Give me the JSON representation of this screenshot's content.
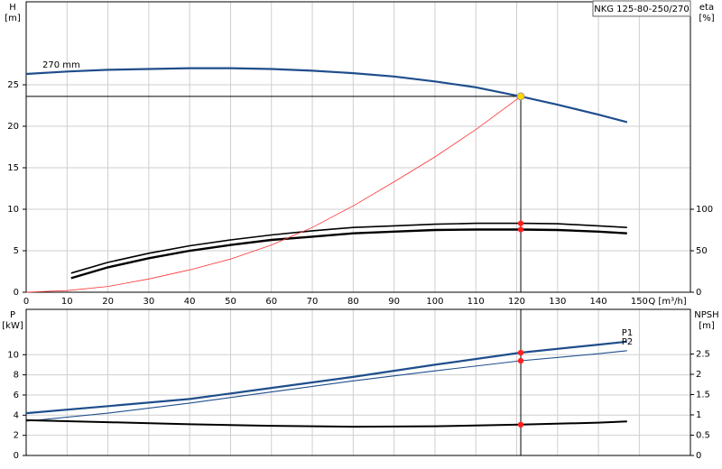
{
  "chart_data": [
    {
      "type": "line",
      "title": "NKG 125-80-250/270",
      "ylabel": [
        "H",
        "[m]"
      ],
      "y2label": [
        "eta",
        "[%]"
      ],
      "xlabel": "Q [m³/h]",
      "xlim": [
        0,
        162.5
      ],
      "xticks": [
        0,
        10,
        20,
        30,
        40,
        50,
        60,
        70,
        80,
        90,
        100,
        110,
        120,
        130,
        140,
        150
      ],
      "ylim": [
        0,
        35
      ],
      "yticks": [
        0,
        5,
        10,
        15,
        20,
        25
      ],
      "y2lim": [
        0,
        350
      ],
      "y2ticks": [
        0,
        50,
        100
      ],
      "grid": true,
      "xtick_labels": true,
      "duty_point": {
        "q": 121,
        "h": 23.6
      },
      "series": [
        {
          "name": "270 mm",
          "color": "#1f4e8c",
          "width": 2.2,
          "x": [
            0,
            10,
            20,
            30,
            40,
            50,
            60,
            70,
            80,
            90,
            100,
            110,
            121,
            130,
            140,
            147
          ],
          "values": [
            26.3,
            26.6,
            26.8,
            26.9,
            27.0,
            27.0,
            26.9,
            26.7,
            26.4,
            26.0,
            25.4,
            24.7,
            23.6,
            22.6,
            21.4,
            20.5
          ]
        },
        {
          "color": "#000000",
          "width": 1.6,
          "axis": "y2",
          "x": [
            11,
            20,
            30,
            40,
            50,
            60,
            70,
            80,
            90,
            100,
            110,
            121,
            130,
            140,
            147
          ],
          "values": [
            23,
            36,
            47,
            56,
            63,
            69,
            74,
            78,
            80,
            82,
            83,
            83,
            82.5,
            80,
            78
          ]
        },
        {
          "color": "#000000",
          "width": 2.4,
          "axis": "y2",
          "x": [
            11,
            20,
            30,
            40,
            50,
            60,
            70,
            80,
            90,
            100,
            110,
            121,
            130,
            140,
            147
          ],
          "values": [
            17,
            30,
            41,
            50,
            57,
            63,
            67,
            71,
            73,
            75,
            75.5,
            75.5,
            75,
            73,
            71
          ]
        },
        {
          "color": "#ff3333",
          "width": 0.8,
          "nodot": true,
          "x": [
            0,
            10,
            20,
            30,
            40,
            50,
            60,
            70,
            80,
            90,
            100,
            110,
            121
          ],
          "values": [
            0,
            0.2,
            0.7,
            1.6,
            2.7,
            4,
            5.7,
            7.8,
            10.4,
            13.3,
            16.3,
            19.6,
            23.6
          ]
        }
      ]
    },
    {
      "type": "line",
      "ylabel": [
        "P",
        "[kW]"
      ],
      "y2label": [
        "NPSH",
        "[m]"
      ],
      "xlim": [
        0,
        162.5
      ],
      "xticks": [
        0,
        10,
        20,
        30,
        40,
        50,
        60,
        70,
        80,
        90,
        100,
        110,
        120,
        130,
        140,
        150
      ],
      "ylim": [
        0,
        14.5
      ],
      "yticks": [
        0,
        2,
        4,
        6,
        8,
        10
      ],
      "y2lim": [
        0,
        3.6
      ],
      "y2ticks": [
        0,
        0.5,
        1,
        1.5,
        2,
        2.5
      ],
      "grid": true,
      "xtick_labels": false,
      "duty_point": {
        "q": 121
      },
      "series": [
        {
          "name": "P1",
          "color": "#1f4e8c",
          "width": 2.2,
          "x": [
            0,
            20,
            40,
            60,
            80,
            100,
            121,
            140,
            147
          ],
          "values": [
            4.2,
            4.9,
            5.6,
            6.7,
            7.8,
            9.0,
            10.2,
            11.0,
            11.3
          ]
        },
        {
          "name": "P2",
          "color": "#1f4e8c",
          "width": 1.1,
          "x": [
            0,
            20,
            40,
            60,
            80,
            100,
            121,
            140,
            147
          ],
          "values": [
            3.4,
            4.2,
            5.2,
            6.3,
            7.4,
            8.4,
            9.4,
            10.1,
            10.4
          ]
        },
        {
          "color": "#000000",
          "width": 2,
          "axis": "y2",
          "x": [
            0,
            20,
            40,
            60,
            80,
            100,
            121,
            140,
            147
          ],
          "values": [
            0.87,
            0.82,
            0.77,
            0.73,
            0.71,
            0.72,
            0.76,
            0.81,
            0.84
          ]
        }
      ]
    }
  ]
}
